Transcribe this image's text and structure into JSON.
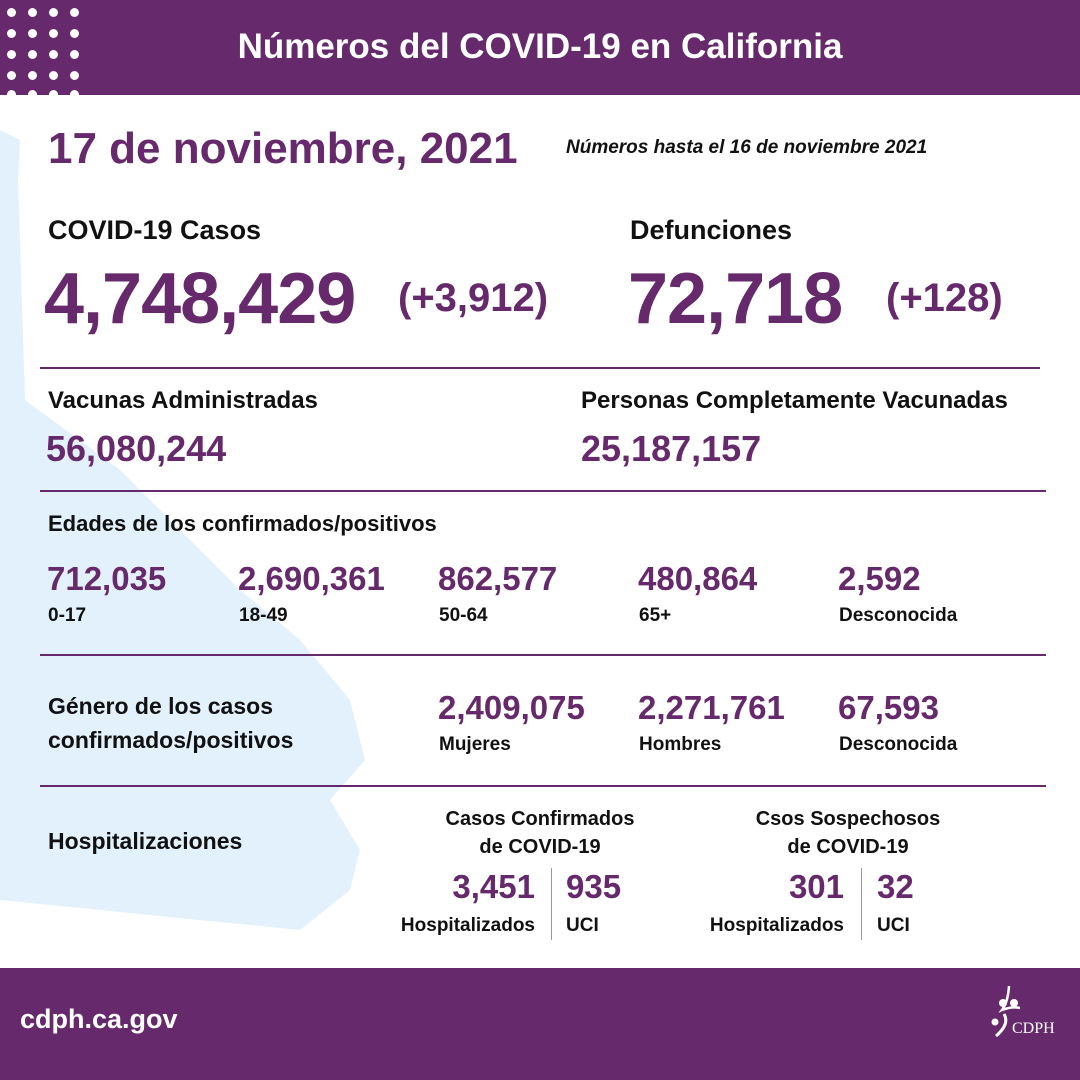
{
  "header": {
    "title": "Números del COVID-19 en California"
  },
  "date": {
    "title": "17 de noviembre, 2021",
    "note": "Números hasta el 16 de noviembre 2021"
  },
  "cases": {
    "label": "COVID-19 Casos",
    "value": "4,748,429",
    "change": "(+3,912)"
  },
  "deaths": {
    "label": "Defunciones",
    "value": "72,718",
    "change": "(+128)"
  },
  "vaccines": {
    "label": "Vacunas Administradas",
    "value": "56,080,244"
  },
  "fully_vaccinated": {
    "label": "Personas Completamente Vacunadas",
    "value": "25,187,157"
  },
  "ages": {
    "label": "Edades de los confirmados/positivos",
    "items": [
      {
        "value": "712,035",
        "label": "0-17"
      },
      {
        "value": "2,690,361",
        "label": "18-49"
      },
      {
        "value": "862,577",
        "label": "50-64"
      },
      {
        "value": "480,864",
        "label": "65+"
      },
      {
        "value": "2,592",
        "label": "Desconocida"
      }
    ]
  },
  "gender": {
    "label_line1": "Género de los casos",
    "label_line2": "confirmados/positivos",
    "items": [
      {
        "value": "2,409,075",
        "label": "Mujeres"
      },
      {
        "value": "2,271,761",
        "label": "Hombres"
      },
      {
        "value": "67,593",
        "label": "Desconocida"
      }
    ]
  },
  "hospital": {
    "label": "Hospitalizaciones",
    "confirmed": {
      "title_line1": "Casos Confirmados",
      "title_line2": "de COVID-19",
      "hospitalized": "3,451",
      "hospitalized_label": "Hospitalizados",
      "icu": "935",
      "icu_label": "UCI"
    },
    "suspected": {
      "title_line1": "Csos Sospechosos",
      "title_line2": "de COVID-19",
      "hospitalized": "301",
      "hospitalized_label": "Hospitalizados",
      "icu": "32",
      "icu_label": "UCI"
    }
  },
  "footer": {
    "url": "cdph.ca.gov",
    "logo_text": "CDPH"
  },
  "colors": {
    "brand": "#66296b",
    "map": "#e2f1fb"
  }
}
